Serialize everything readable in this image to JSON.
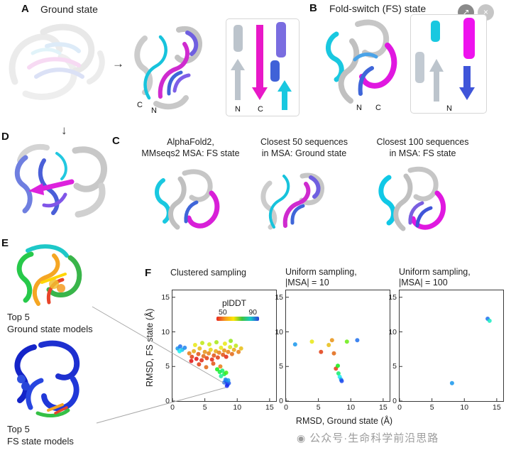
{
  "window": {
    "share_button_glyph": "↗",
    "close_button_glyph": "×"
  },
  "watermark": {
    "logo_glyph": "◉",
    "text": "公众号·生命科学前沿思路"
  },
  "panel_a": {
    "label": "A",
    "title": "Ground state",
    "arrow_right": "→",
    "c_terminus": "C",
    "n_terminus": "N",
    "topology": {
      "n_label": "N",
      "c_label": "C"
    }
  },
  "panel_b": {
    "label": "B",
    "title": "Fold-switch (FS) state",
    "n_terminus": "N",
    "c_terminus": "C",
    "topology": {
      "n_label": "N"
    }
  },
  "panel_c": {
    "label": "C",
    "items": [
      {
        "line1": "AlphaFold2,",
        "line2": "MMseqs2 MSA: FS state"
      },
      {
        "line1": "Closest 50 sequences",
        "line2": "in MSA: Ground state"
      },
      {
        "line1": "Closest 100 sequences",
        "line2": "in MSA: FS state"
      }
    ]
  },
  "panel_d": {
    "label": "D",
    "arrow_down": "↓"
  },
  "panel_e": {
    "label": "E",
    "top_caption_line1": "Top 5",
    "top_caption_line2": "Ground state models",
    "bottom_caption_line1": "Top 5",
    "bottom_caption_line2": "FS state models"
  },
  "panel_f": {
    "label": "F",
    "xlabel": "RMSD, Ground state (Å)",
    "ylabel": "RMSD, FS state (Å)"
  },
  "chart_data": [
    {
      "type": "scatter",
      "title_lines": [
        "Clustered sampling"
      ],
      "xlabel": "RMSD, Ground state (Å)",
      "ylabel": "RMSD, FS state (Å)",
      "xlim": [
        0,
        16
      ],
      "ylim": [
        0,
        16
      ],
      "xticks": [
        0,
        5,
        10,
        15
      ],
      "yticks": [
        0,
        5,
        10,
        15
      ],
      "grid": false,
      "legend_position": "upper center inside",
      "colorbar": {
        "label": "plDDT",
        "min": 50,
        "max": 90
      },
      "point_format": [
        "x",
        "y",
        "plddt"
      ],
      "points": [
        [
          0.8,
          7.6,
          84
        ],
        [
          1.2,
          7.9,
          86
        ],
        [
          1.5,
          7.4,
          82
        ],
        [
          1.9,
          7.7,
          85
        ],
        [
          1.1,
          7.2,
          80
        ],
        [
          2.6,
          6.9,
          55
        ],
        [
          3.0,
          6.4,
          52
        ],
        [
          3.3,
          7.2,
          57
        ],
        [
          3.7,
          6.1,
          50
        ],
        [
          4.0,
          6.8,
          53
        ],
        [
          4.2,
          7.6,
          58
        ],
        [
          4.5,
          5.9,
          51
        ],
        [
          4.8,
          6.5,
          54
        ],
        [
          5.0,
          7.1,
          56
        ],
        [
          5.3,
          6.2,
          52
        ],
        [
          5.6,
          6.9,
          55
        ],
        [
          5.9,
          7.4,
          59
        ],
        [
          6.1,
          6.0,
          51
        ],
        [
          6.4,
          6.6,
          53
        ],
        [
          6.7,
          7.2,
          57
        ],
        [
          7.0,
          6.3,
          52
        ],
        [
          7.2,
          7.0,
          55
        ],
        [
          7.5,
          7.7,
          60
        ],
        [
          7.8,
          6.7,
          53
        ],
        [
          8.0,
          7.3,
          56
        ],
        [
          8.3,
          6.4,
          51
        ],
        [
          8.6,
          7.1,
          55
        ],
        [
          8.9,
          7.8,
          61
        ],
        [
          9.2,
          6.8,
          54
        ],
        [
          9.5,
          7.4,
          57
        ],
        [
          9.8,
          8.0,
          62
        ],
        [
          10.2,
          7.1,
          55
        ],
        [
          10.6,
          7.6,
          58
        ],
        [
          3.5,
          8.1,
          60
        ],
        [
          4.6,
          8.4,
          62
        ],
        [
          5.7,
          8.2,
          61
        ],
        [
          6.8,
          8.5,
          63
        ],
        [
          8.1,
          8.3,
          60
        ],
        [
          9.0,
          8.7,
          64
        ],
        [
          2.9,
          5.8,
          50
        ],
        [
          4.1,
          5.3,
          52
        ],
        [
          5.2,
          4.9,
          54
        ],
        [
          6.3,
          5.4,
          53
        ],
        [
          7.4,
          5.0,
          55
        ],
        [
          6.9,
          4.6,
          70
        ],
        [
          7.3,
          4.2,
          72
        ],
        [
          7.7,
          4.4,
          74
        ],
        [
          8.0,
          3.9,
          73
        ],
        [
          7.5,
          3.6,
          76
        ],
        [
          8.3,
          4.1,
          68
        ],
        [
          8.0,
          2.7,
          86
        ],
        [
          8.3,
          2.9,
          88
        ],
        [
          8.5,
          2.4,
          90
        ],
        [
          8.7,
          2.6,
          87
        ],
        [
          8.2,
          3.1,
          85
        ],
        [
          8.6,
          3.0,
          84
        ],
        [
          8.4,
          2.2,
          89
        ]
      ]
    },
    {
      "type": "scatter",
      "title_lines": [
        "Uniform sampling,",
        "|MSA| = 10"
      ],
      "xlabel": "RMSD, Ground state (Å)",
      "ylabel": "RMSD, FS state (Å)",
      "xlim": [
        0,
        16
      ],
      "ylim": [
        0,
        16
      ],
      "xticks": [
        0,
        5,
        10,
        15
      ],
      "yticks": [
        0,
        5,
        10,
        15
      ],
      "grid": false,
      "point_format": [
        "x",
        "y",
        "plddt"
      ],
      "points": [
        [
          1.4,
          8.2,
          84
        ],
        [
          4.0,
          8.6,
          60
        ],
        [
          5.4,
          7.1,
          52
        ],
        [
          6.6,
          8.1,
          58
        ],
        [
          7.1,
          8.8,
          56
        ],
        [
          9.4,
          8.6,
          66
        ],
        [
          11.0,
          8.8,
          86
        ],
        [
          7.4,
          6.9,
          54
        ],
        [
          7.7,
          4.7,
          52
        ],
        [
          8.0,
          5.1,
          70
        ],
        [
          8.1,
          4.0,
          74
        ],
        [
          8.3,
          3.5,
          80
        ],
        [
          8.5,
          3.1,
          84
        ],
        [
          8.6,
          2.9,
          88
        ]
      ]
    },
    {
      "type": "scatter",
      "title_lines": [
        "Uniform sampling,",
        "|MSA| = 100"
      ],
      "xlabel": "RMSD, Ground state (Å)",
      "ylabel": "RMSD, FS state (Å)",
      "xlim": [
        0,
        16
      ],
      "ylim": [
        0,
        16
      ],
      "xticks": [
        0,
        5,
        10,
        15
      ],
      "yticks": [
        0,
        5,
        10,
        15
      ],
      "grid": false,
      "point_format": [
        "x",
        "y",
        "plddt"
      ],
      "points": [
        [
          13.6,
          11.9,
          86
        ],
        [
          13.9,
          11.6,
          78
        ],
        [
          8.1,
          2.6,
          84
        ]
      ]
    }
  ]
}
